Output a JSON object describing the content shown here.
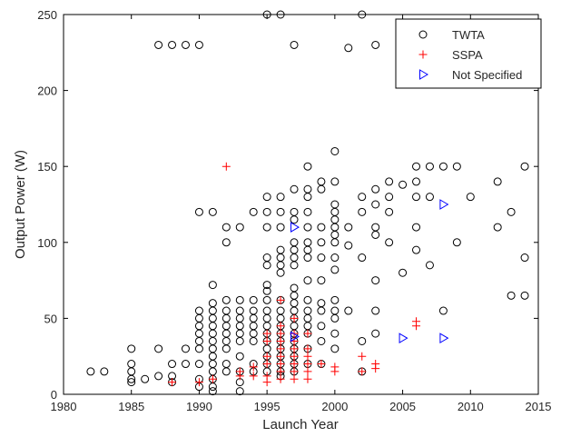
{
  "chart_data": {
    "type": "scatter",
    "title": "",
    "xlabel": "Launch Year",
    "ylabel": "Output Power (W)",
    "xlim": [
      1980,
      2015
    ],
    "ylim": [
      0,
      250
    ],
    "xticks": [
      "1980",
      "1985",
      "1990",
      "1995",
      "2000",
      "2005",
      "2010",
      "2015"
    ],
    "yticks": [
      "0",
      "50",
      "100",
      "150",
      "200",
      "250"
    ],
    "grid": false,
    "legend_position": "top-right",
    "series": [
      {
        "name": "TWTA",
        "marker": "circle",
        "color": "#000000",
        "points": [
          [
            1982,
            15
          ],
          [
            1983,
            15
          ],
          [
            1985,
            30
          ],
          [
            1985,
            20
          ],
          [
            1985,
            15
          ],
          [
            1985,
            10
          ],
          [
            1985,
            8
          ],
          [
            1986,
            10
          ],
          [
            1987,
            230
          ],
          [
            1987,
            30
          ],
          [
            1987,
            12
          ],
          [
            1988,
            230
          ],
          [
            1988,
            20
          ],
          [
            1988,
            12
          ],
          [
            1988,
            8
          ],
          [
            1989,
            230
          ],
          [
            1989,
            30
          ],
          [
            1989,
            20
          ],
          [
            1990,
            230
          ],
          [
            1990,
            120
          ],
          [
            1990,
            55
          ],
          [
            1990,
            50
          ],
          [
            1990,
            45
          ],
          [
            1990,
            40
          ],
          [
            1990,
            35
          ],
          [
            1990,
            30
          ],
          [
            1990,
            20
          ],
          [
            1990,
            10
          ],
          [
            1990,
            5
          ],
          [
            1991,
            120
          ],
          [
            1991,
            72
          ],
          [
            1991,
            60
          ],
          [
            1991,
            55
          ],
          [
            1991,
            50
          ],
          [
            1991,
            45
          ],
          [
            1991,
            40
          ],
          [
            1991,
            35
          ],
          [
            1991,
            30
          ],
          [
            1991,
            25
          ],
          [
            1991,
            20
          ],
          [
            1991,
            15
          ],
          [
            1991,
            10
          ],
          [
            1991,
            5
          ],
          [
            1991,
            2
          ],
          [
            1992,
            110
          ],
          [
            1992,
            100
          ],
          [
            1992,
            62
          ],
          [
            1992,
            55
          ],
          [
            1992,
            50
          ],
          [
            1992,
            45
          ],
          [
            1992,
            40
          ],
          [
            1992,
            35
          ],
          [
            1992,
            30
          ],
          [
            1992,
            20
          ],
          [
            1992,
            15
          ],
          [
            1993,
            110
          ],
          [
            1993,
            62
          ],
          [
            1993,
            55
          ],
          [
            1993,
            50
          ],
          [
            1993,
            45
          ],
          [
            1993,
            40
          ],
          [
            1993,
            35
          ],
          [
            1993,
            25
          ],
          [
            1993,
            15
          ],
          [
            1993,
            8
          ],
          [
            1993,
            2
          ],
          [
            1994,
            120
          ],
          [
            1994,
            62
          ],
          [
            1994,
            55
          ],
          [
            1994,
            50
          ],
          [
            1994,
            45
          ],
          [
            1994,
            40
          ],
          [
            1994,
            35
          ],
          [
            1994,
            20
          ],
          [
            1994,
            15
          ],
          [
            1995,
            250
          ],
          [
            1995,
            130
          ],
          [
            1995,
            120
          ],
          [
            1995,
            110
          ],
          [
            1995,
            90
          ],
          [
            1995,
            85
          ],
          [
            1995,
            72
          ],
          [
            1995,
            68
          ],
          [
            1995,
            62
          ],
          [
            1995,
            55
          ],
          [
            1995,
            50
          ],
          [
            1995,
            45
          ],
          [
            1995,
            40
          ],
          [
            1995,
            35
          ],
          [
            1995,
            30
          ],
          [
            1995,
            25
          ],
          [
            1995,
            20
          ],
          [
            1995,
            15
          ],
          [
            1996,
            250
          ],
          [
            1996,
            130
          ],
          [
            1996,
            120
          ],
          [
            1996,
            110
          ],
          [
            1996,
            95
          ],
          [
            1996,
            90
          ],
          [
            1996,
            85
          ],
          [
            1996,
            80
          ],
          [
            1996,
            62
          ],
          [
            1996,
            55
          ],
          [
            1996,
            50
          ],
          [
            1996,
            45
          ],
          [
            1996,
            40
          ],
          [
            1996,
            35
          ],
          [
            1996,
            30
          ],
          [
            1996,
            25
          ],
          [
            1996,
            20
          ],
          [
            1996,
            15
          ],
          [
            1996,
            12
          ],
          [
            1997,
            230
          ],
          [
            1997,
            135
          ],
          [
            1997,
            120
          ],
          [
            1997,
            115
          ],
          [
            1997,
            100
          ],
          [
            1997,
            95
          ],
          [
            1997,
            90
          ],
          [
            1997,
            85
          ],
          [
            1997,
            70
          ],
          [
            1997,
            65
          ],
          [
            1997,
            60
          ],
          [
            1997,
            55
          ],
          [
            1997,
            50
          ],
          [
            1997,
            45
          ],
          [
            1997,
            40
          ],
          [
            1997,
            35
          ],
          [
            1997,
            30
          ],
          [
            1997,
            25
          ],
          [
            1997,
            20
          ],
          [
            1997,
            15
          ],
          [
            1998,
            150
          ],
          [
            1998,
            135
          ],
          [
            1998,
            130
          ],
          [
            1998,
            120
          ],
          [
            1998,
            110
          ],
          [
            1998,
            100
          ],
          [
            1998,
            95
          ],
          [
            1998,
            90
          ],
          [
            1998,
            75
          ],
          [
            1998,
            62
          ],
          [
            1998,
            55
          ],
          [
            1998,
            50
          ],
          [
            1998,
            45
          ],
          [
            1998,
            40
          ],
          [
            1998,
            30
          ],
          [
            1998,
            20
          ],
          [
            1999,
            140
          ],
          [
            1999,
            135
          ],
          [
            1999,
            110
          ],
          [
            1999,
            100
          ],
          [
            1999,
            90
          ],
          [
            1999,
            75
          ],
          [
            1999,
            60
          ],
          [
            1999,
            55
          ],
          [
            1999,
            45
          ],
          [
            1999,
            35
          ],
          [
            1999,
            20
          ],
          [
            2000,
            160
          ],
          [
            2000,
            140
          ],
          [
            2000,
            125
          ],
          [
            2000,
            120
          ],
          [
            2000,
            115
          ],
          [
            2000,
            110
          ],
          [
            2000,
            105
          ],
          [
            2000,
            100
          ],
          [
            2000,
            90
          ],
          [
            2000,
            82
          ],
          [
            2000,
            62
          ],
          [
            2000,
            55
          ],
          [
            2000,
            50
          ],
          [
            2000,
            40
          ],
          [
            2000,
            30
          ],
          [
            2001,
            228
          ],
          [
            2001,
            110
          ],
          [
            2001,
            98
          ],
          [
            2001,
            55
          ],
          [
            2002,
            250
          ],
          [
            2002,
            130
          ],
          [
            2002,
            120
          ],
          [
            2002,
            90
          ],
          [
            2002,
            35
          ],
          [
            2002,
            15
          ],
          [
            2003,
            230
          ],
          [
            2003,
            135
          ],
          [
            2003,
            125
          ],
          [
            2003,
            110
          ],
          [
            2003,
            105
          ],
          [
            2003,
            75
          ],
          [
            2003,
            55
          ],
          [
            2003,
            40
          ],
          [
            2004,
            140
          ],
          [
            2004,
            130
          ],
          [
            2004,
            120
          ],
          [
            2004,
            100
          ],
          [
            2005,
            138
          ],
          [
            2005,
            80
          ],
          [
            2006,
            150
          ],
          [
            2006,
            140
          ],
          [
            2006,
            130
          ],
          [
            2006,
            110
          ],
          [
            2006,
            95
          ],
          [
            2007,
            150
          ],
          [
            2007,
            130
          ],
          [
            2007,
            85
          ],
          [
            2008,
            150
          ],
          [
            2008,
            55
          ],
          [
            2009,
            150
          ],
          [
            2009,
            100
          ],
          [
            2010,
            130
          ],
          [
            2012,
            140
          ],
          [
            2012,
            110
          ],
          [
            2013,
            120
          ],
          [
            2013,
            65
          ],
          [
            2014,
            150
          ],
          [
            2014,
            90
          ],
          [
            2014,
            65
          ]
        ]
      },
      {
        "name": "SSPA",
        "marker": "plus",
        "color": "#ff0000",
        "points": [
          [
            1988,
            8
          ],
          [
            1990,
            8
          ],
          [
            1991,
            10
          ],
          [
            1992,
            150
          ],
          [
            1993,
            15
          ],
          [
            1993,
            12
          ],
          [
            1994,
            18
          ],
          [
            1994,
            12
          ],
          [
            1995,
            40
          ],
          [
            1995,
            35
          ],
          [
            1995,
            25
          ],
          [
            1995,
            20
          ],
          [
            1995,
            12
          ],
          [
            1995,
            8
          ],
          [
            1996,
            62
          ],
          [
            1996,
            45
          ],
          [
            1996,
            40
          ],
          [
            1996,
            35
          ],
          [
            1996,
            30
          ],
          [
            1996,
            25
          ],
          [
            1996,
            20
          ],
          [
            1996,
            15
          ],
          [
            1996,
            10
          ],
          [
            1997,
            50
          ],
          [
            1997,
            40
          ],
          [
            1997,
            35
          ],
          [
            1997,
            30
          ],
          [
            1997,
            25
          ],
          [
            1997,
            20
          ],
          [
            1997,
            15
          ],
          [
            1997,
            10
          ],
          [
            1998,
            40
          ],
          [
            1998,
            30
          ],
          [
            1998,
            25
          ],
          [
            1998,
            20
          ],
          [
            1998,
            15
          ],
          [
            1998,
            10
          ],
          [
            1999,
            20
          ],
          [
            2000,
            18
          ],
          [
            2000,
            15
          ],
          [
            2002,
            25
          ],
          [
            2002,
            15
          ],
          [
            2003,
            20
          ],
          [
            2003,
            17
          ],
          [
            2006,
            48
          ],
          [
            2006,
            45
          ]
        ]
      },
      {
        "name": "Not Specified",
        "marker": "triangle-right",
        "color": "#0000ff",
        "points": [
          [
            1997,
            110
          ],
          [
            1997,
            38
          ],
          [
            2005,
            37
          ],
          [
            2008,
            125
          ],
          [
            2008,
            37
          ]
        ]
      }
    ]
  }
}
